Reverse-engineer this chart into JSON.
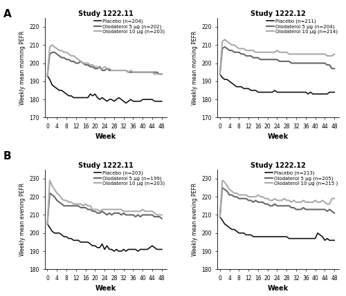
{
  "panel_A_title_left": "Study 1222.11",
  "panel_A_title_right": "Study 1222.12",
  "panel_B_title_left": "Study 1222.11",
  "panel_B_title_right": "Study 1222.12",
  "legend_A_left": [
    "Placebo (n=204)",
    "Olodaterol 5 µg (n=202)",
    "Olodaterol 10 µg (n=203)"
  ],
  "legend_A_right": [
    "Placebo (n=211)",
    "Olodaterol 5 µg (n=204)",
    "Olodaterol 10 µg (n=214)"
  ],
  "legend_B_left": [
    "Placebo (n=203)",
    "Olodaterol 5 µg (n=199)",
    "Olodaterol 10 µg (n=203)"
  ],
  "legend_B_right": [
    "Placebo (n=213)",
    "Olodaterol 5 µg (n=205)",
    "Olodaterol 10 µg (n=215 )"
  ],
  "colors": [
    "#111111",
    "#666666",
    "#aaaaaa"
  ],
  "linewidths": [
    1.2,
    1.5,
    1.5
  ],
  "x_ticks": [
    0,
    4,
    8,
    12,
    16,
    20,
    24,
    28,
    32,
    36,
    40,
    44,
    48
  ],
  "xlabel": "Week",
  "ylabel_A": "Weekly mean morning PEFR",
  "ylabel_B": "Weekly mean evening PEFR",
  "ylim_A": [
    170,
    225
  ],
  "yticks_A": [
    170,
    180,
    190,
    200,
    210,
    220
  ],
  "ylim_B": [
    180,
    235
  ],
  "yticks_B": [
    180,
    190,
    200,
    210,
    220,
    230
  ],
  "weeks": [
    0,
    1,
    2,
    3,
    4,
    5,
    6,
    7,
    8,
    9,
    10,
    11,
    12,
    13,
    14,
    15,
    16,
    17,
    18,
    19,
    20,
    21,
    22,
    23,
    24,
    25,
    26,
    27,
    28,
    29,
    30,
    31,
    32,
    33,
    34,
    35,
    36,
    37,
    38,
    39,
    40,
    41,
    42,
    43,
    44,
    45,
    46,
    47,
    48
  ],
  "A_left_placebo": [
    193,
    191,
    188,
    187,
    186,
    185,
    185,
    184,
    183,
    182,
    182,
    181,
    181,
    181,
    181,
    181,
    181,
    181,
    183,
    182,
    183,
    181,
    180,
    181,
    180,
    179,
    180,
    180,
    179,
    180,
    181,
    180,
    179,
    178,
    179,
    180,
    179,
    179,
    179,
    179,
    180,
    180,
    180,
    180,
    180,
    179,
    179,
    179,
    179
  ],
  "A_left_olo5": [
    193,
    205,
    206,
    206,
    205,
    204,
    203,
    203,
    202,
    202,
    201,
    201,
    200,
    200,
    201,
    200,
    199,
    199,
    198,
    198,
    197,
    197,
    198,
    196,
    196,
    197,
    196,
    196,
    196,
    196,
    196,
    196,
    196,
    196,
    195,
    195,
    195,
    195,
    195,
    195,
    195,
    195,
    195,
    195,
    195,
    195,
    195,
    194,
    194
  ],
  "A_left_olo10": [
    193,
    209,
    210,
    209,
    208,
    207,
    207,
    206,
    206,
    205,
    204,
    204,
    203,
    202,
    201,
    200,
    200,
    200,
    199,
    199,
    198,
    198,
    197,
    197,
    198,
    197,
    197,
    196,
    196,
    196,
    196,
    196,
    196,
    196,
    195,
    196,
    195,
    195,
    195,
    195,
    195,
    195,
    195,
    195,
    195,
    194,
    194,
    194,
    194
  ],
  "A_right_placebo": [
    194,
    192,
    191,
    191,
    190,
    189,
    188,
    187,
    187,
    187,
    186,
    186,
    186,
    185,
    185,
    185,
    184,
    184,
    184,
    184,
    184,
    184,
    184,
    185,
    184,
    184,
    184,
    184,
    184,
    184,
    184,
    184,
    184,
    184,
    184,
    184,
    184,
    183,
    184,
    183,
    183,
    183,
    183,
    183,
    183,
    183,
    184,
    184,
    184
  ],
  "A_right_olo5": [
    194,
    208,
    209,
    208,
    207,
    207,
    206,
    206,
    206,
    205,
    205,
    204,
    204,
    204,
    203,
    203,
    203,
    202,
    202,
    202,
    202,
    202,
    202,
    202,
    202,
    201,
    201,
    201,
    201,
    201,
    200,
    200,
    200,
    200,
    200,
    200,
    200,
    200,
    200,
    200,
    200,
    200,
    200,
    200,
    200,
    199,
    199,
    197,
    197
  ],
  "A_right_olo10": [
    194,
    212,
    213,
    212,
    211,
    210,
    210,
    209,
    208,
    208,
    208,
    207,
    207,
    207,
    207,
    206,
    206,
    206,
    206,
    206,
    206,
    206,
    206,
    206,
    207,
    206,
    206,
    206,
    206,
    205,
    205,
    205,
    205,
    205,
    205,
    205,
    205,
    205,
    205,
    205,
    205,
    205,
    205,
    205,
    205,
    204,
    204,
    204,
    205
  ],
  "B_left_placebo": [
    205,
    203,
    201,
    200,
    200,
    200,
    199,
    198,
    198,
    197,
    197,
    196,
    196,
    196,
    195,
    195,
    195,
    195,
    194,
    193,
    193,
    192,
    192,
    194,
    191,
    193,
    191,
    191,
    190,
    191,
    190,
    190,
    191,
    190,
    191,
    191,
    191,
    191,
    190,
    191,
    191,
    191,
    191,
    192,
    193,
    192,
    191,
    191,
    191
  ],
  "B_left_olo5": [
    205,
    222,
    221,
    220,
    218,
    217,
    216,
    215,
    215,
    215,
    215,
    215,
    215,
    215,
    214,
    214,
    214,
    213,
    213,
    212,
    212,
    211,
    211,
    212,
    211,
    210,
    211,
    210,
    211,
    211,
    211,
    210,
    211,
    210,
    210,
    210,
    210,
    209,
    210,
    209,
    210,
    210,
    210,
    210,
    210,
    209,
    209,
    209,
    208
  ],
  "B_left_olo10": [
    205,
    229,
    226,
    224,
    222,
    221,
    219,
    218,
    218,
    217,
    217,
    216,
    216,
    216,
    216,
    215,
    216,
    215,
    215,
    213,
    213,
    213,
    212,
    213,
    213,
    213,
    213,
    213,
    213,
    213,
    213,
    213,
    212,
    212,
    212,
    212,
    212,
    212,
    212,
    212,
    213,
    212,
    212,
    212,
    212,
    211,
    210,
    210,
    210
  ],
  "B_right_placebo": [
    209,
    207,
    205,
    204,
    203,
    202,
    202,
    201,
    200,
    200,
    200,
    199,
    199,
    199,
    198,
    198,
    198,
    198,
    198,
    198,
    198,
    198,
    198,
    198,
    198,
    198,
    198,
    198,
    198,
    197,
    197,
    197,
    197,
    197,
    197,
    197,
    197,
    197,
    197,
    197,
    197,
    200,
    199,
    198,
    196,
    197,
    196,
    196,
    196
  ],
  "B_right_olo5": [
    209,
    225,
    224,
    223,
    221,
    221,
    220,
    220,
    219,
    219,
    219,
    219,
    218,
    218,
    217,
    218,
    217,
    217,
    217,
    216,
    216,
    215,
    215,
    216,
    215,
    215,
    215,
    215,
    215,
    215,
    214,
    214,
    213,
    213,
    213,
    214,
    213,
    213,
    213,
    213,
    213,
    213,
    213,
    213,
    213,
    212,
    213,
    212,
    211
  ],
  "B_right_olo10": [
    209,
    229,
    228,
    226,
    224,
    223,
    222,
    222,
    221,
    221,
    221,
    221,
    220,
    220,
    220,
    220,
    221,
    220,
    220,
    219,
    219,
    218,
    218,
    219,
    218,
    218,
    218,
    219,
    218,
    218,
    217,
    218,
    217,
    217,
    217,
    218,
    217,
    217,
    217,
    217,
    218,
    217,
    217,
    218,
    217,
    216,
    216,
    219,
    219
  ]
}
